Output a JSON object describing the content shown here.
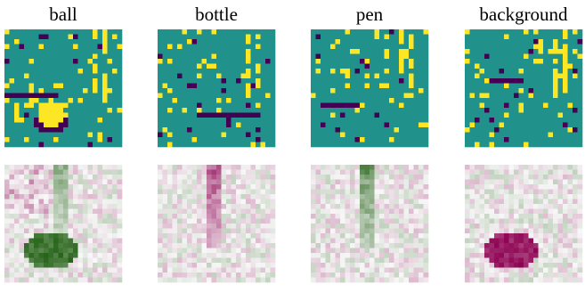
{
  "panels": [
    {
      "label": "ball"
    },
    {
      "label": "bottle"
    },
    {
      "label": "pen"
    },
    {
      "label": "background"
    }
  ]
}
